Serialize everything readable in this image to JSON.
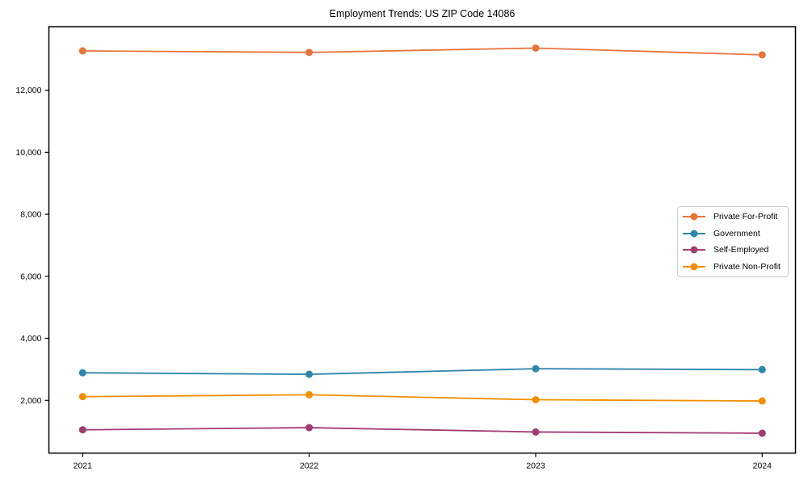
{
  "chart_data": {
    "type": "line",
    "title": "Employment Trends: US ZIP Code 14086",
    "xlabel": "",
    "ylabel": "",
    "x": [
      2021,
      2022,
      2023,
      2024
    ],
    "series": [
      {
        "name": "Private For-Profit",
        "color": "#E8743B",
        "values": [
          13270,
          13220,
          13360,
          13140
        ]
      },
      {
        "name": "Government",
        "color": "#2E86AB",
        "values": [
          2890,
          2840,
          3020,
          2990
        ]
      },
      {
        "name": "Self-Employed",
        "color": "#A23B72",
        "values": [
          1050,
          1120,
          980,
          940
        ]
      },
      {
        "name": "Private Non-Profit",
        "color": "#F18F01",
        "values": [
          2120,
          2180,
          2020,
          1980
        ]
      }
    ],
    "yticks": [
      2000,
      4000,
      6000,
      8000,
      10000,
      12000
    ],
    "ylim": [
      300,
      14050
    ],
    "grid": false,
    "legend_position": "center-right",
    "axis_color": "#000000",
    "text_color": "#000000",
    "background": "#ffffff"
  }
}
